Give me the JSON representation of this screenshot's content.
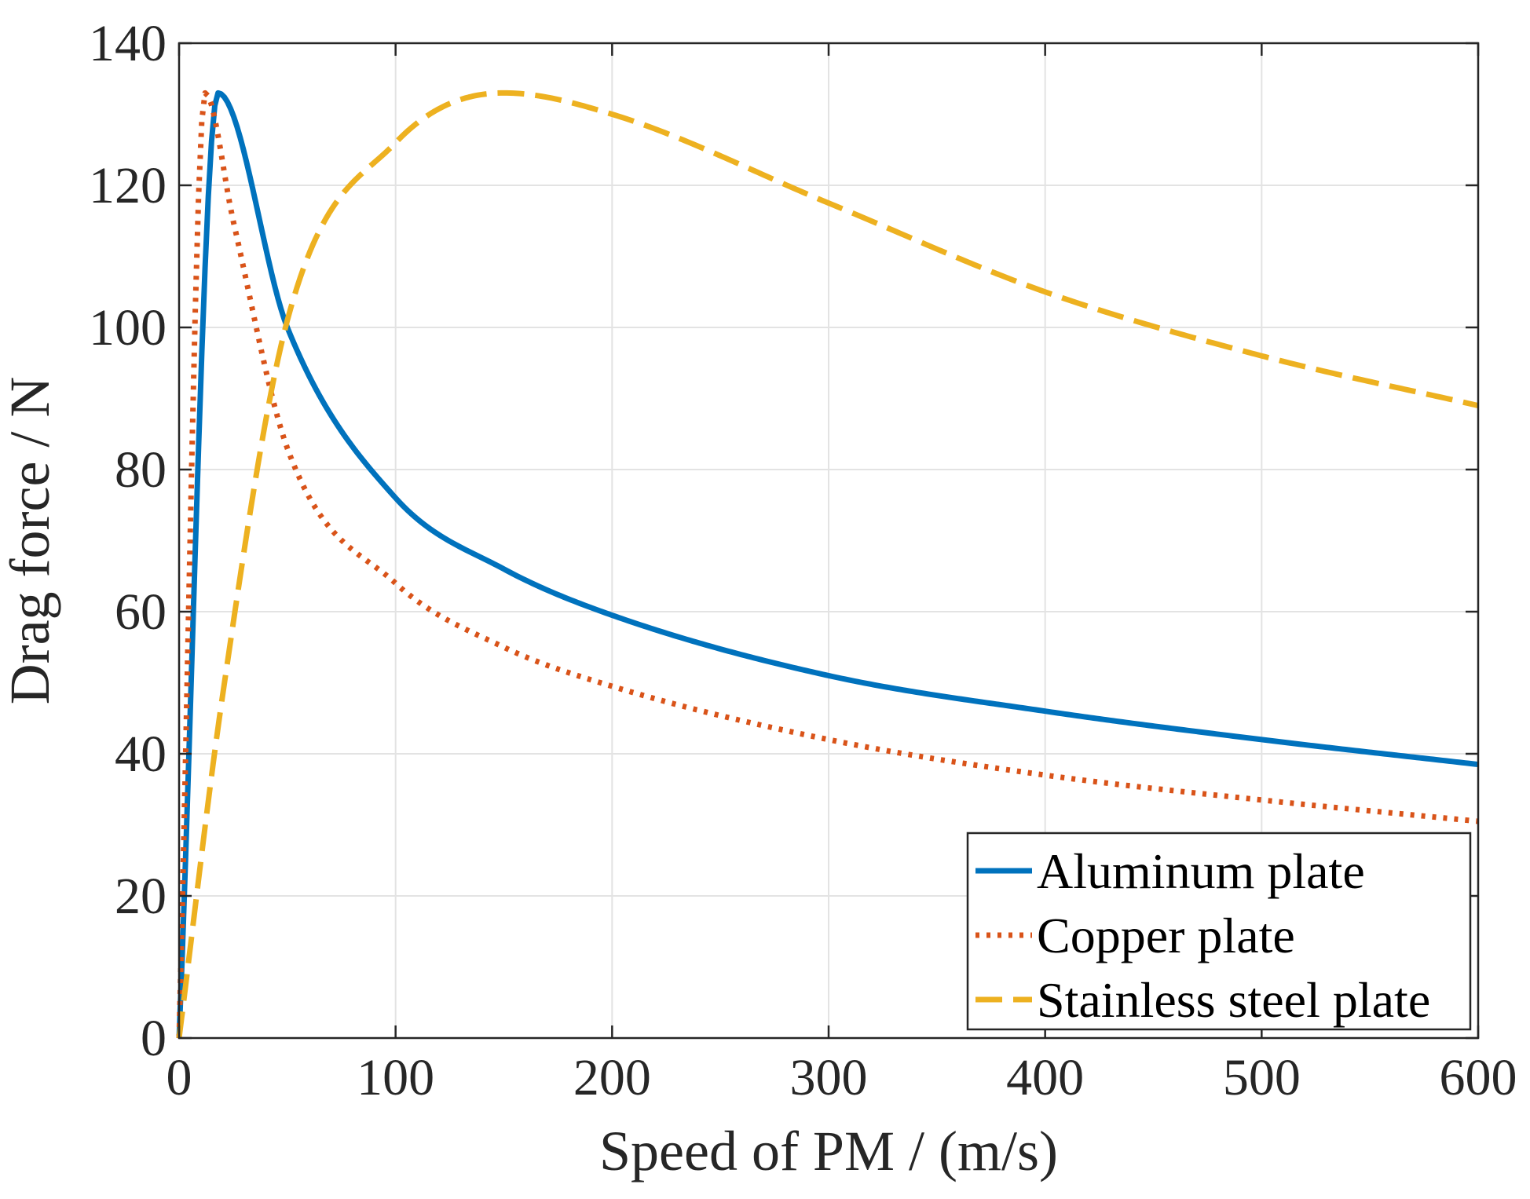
{
  "chart_data": {
    "type": "line",
    "title": "",
    "xlabel": "Speed of PM / (m/s)",
    "ylabel": "Drag force / N",
    "xlim": [
      0,
      600
    ],
    "ylim": [
      0,
      140
    ],
    "xticks": [
      0,
      100,
      200,
      300,
      400,
      500,
      600
    ],
    "yticks": [
      0,
      20,
      40,
      60,
      80,
      100,
      120,
      140
    ],
    "xtick_labels": [
      "0",
      "100",
      "200",
      "300",
      "400",
      "500",
      "600"
    ],
    "ytick_labels": [
      "0",
      "20",
      "40",
      "60",
      "80",
      "100",
      "120",
      "140"
    ],
    "grid": true,
    "legend_location": "bottom-right",
    "series": [
      {
        "name": "Aluminum plate",
        "color": "#0072BD",
        "style": "solid",
        "peak_speed": 18,
        "peak_force": 133,
        "x": [
          0,
          18,
          50,
          100,
          150,
          200,
          300,
          400,
          500,
          600
        ],
        "y": [
          0,
          133,
          100,
          76,
          66,
          59.5,
          51,
          46,
          42,
          38.5
        ]
      },
      {
        "name": "Copper plate",
        "color": "#D95319",
        "style": "dotted",
        "peak_speed": 12,
        "peak_force": 133,
        "x": [
          0,
          12,
          25,
          50,
          100,
          150,
          200,
          300,
          400,
          500,
          600
        ],
        "y": [
          0,
          133,
          115,
          83,
          64,
          55,
          49.5,
          42,
          37,
          33.5,
          30.5
        ]
      },
      {
        "name": "Stainless steel plate",
        "color": "#EDB120",
        "style": "dashed",
        "peak_speed": 150,
        "peak_force": 133,
        "x": [
          0,
          20,
          50,
          100,
          150,
          200,
          300,
          400,
          500,
          600
        ],
        "y": [
          0,
          48,
          101,
          126,
          133,
          130,
          117.5,
          105,
          96,
          89
        ]
      }
    ]
  }
}
